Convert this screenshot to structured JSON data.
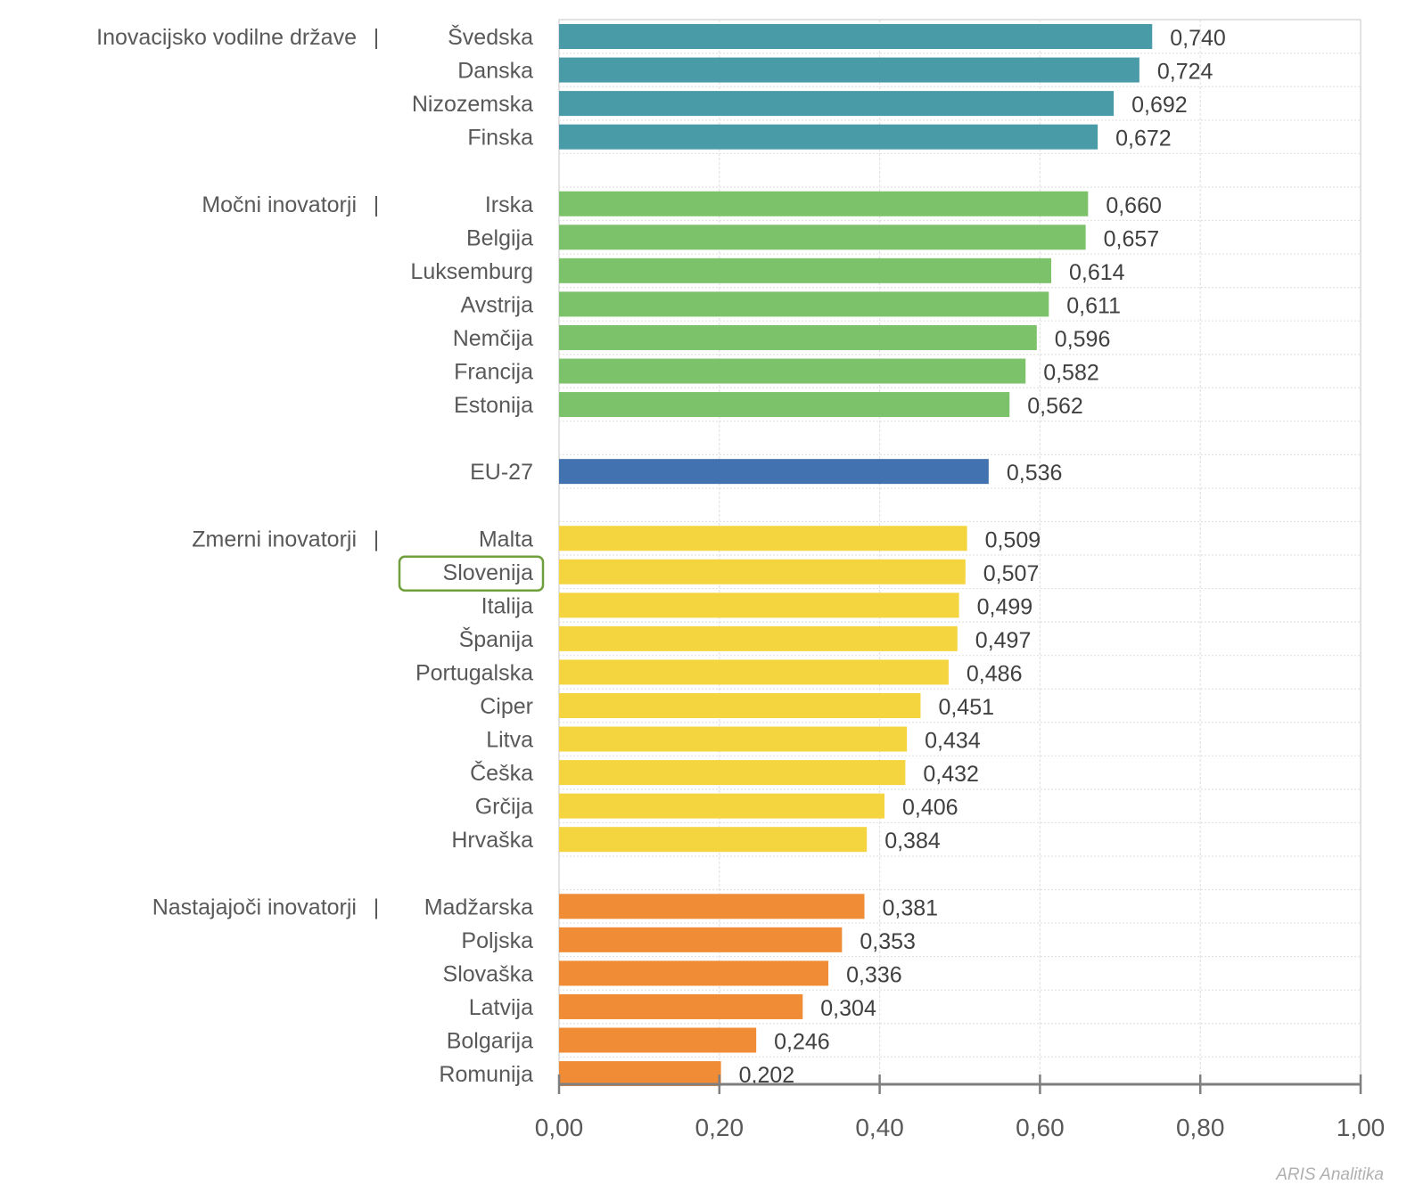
{
  "chart_data": {
    "type": "bar",
    "orientation": "horizontal",
    "title": "",
    "xlabel": "",
    "ylabel": "",
    "xlim": [
      0,
      1
    ],
    "x_ticks": [
      "0,00",
      "0,20",
      "0,40",
      "0,60",
      "0,80",
      "1,00"
    ],
    "x_tick_values": [
      0,
      0.2,
      0.4,
      0.6,
      0.8,
      1.0
    ],
    "grid": true,
    "decimal_separator": ",",
    "highlighted_category": "Slovenija",
    "highlight_color": "#70a03c",
    "groups": [
      {
        "name": "Inovacijsko vodilne države",
        "color": "#4a9ba8",
        "categories": [
          "Švedska",
          "Danska",
          "Nizozemska",
          "Finska"
        ],
        "values": [
          0.74,
          0.724,
          0.692,
          0.672
        ],
        "value_labels": [
          "0,740",
          "0,724",
          "0,692",
          "0,672"
        ]
      },
      {
        "name": "Močni inovatorji",
        "color": "#7cc26a",
        "categories": [
          "Irska",
          "Belgija",
          "Luksemburg",
          "Avstrija",
          "Nemčija",
          "Francija",
          "Estonija"
        ],
        "values": [
          0.66,
          0.657,
          0.614,
          0.611,
          0.596,
          0.582,
          0.562
        ],
        "value_labels": [
          "0,660",
          "0,657",
          "0,614",
          "0,611",
          "0,596",
          "0,582",
          "0,562"
        ]
      },
      {
        "name": "",
        "color": "#4272b0",
        "categories": [
          "EU-27"
        ],
        "values": [
          0.536
        ],
        "value_labels": [
          "0,536"
        ]
      },
      {
        "name": "Zmerni inovatorji",
        "color": "#f4d53f",
        "categories": [
          "Malta",
          "Slovenija",
          "Italija",
          "Španija",
          "Portugalska",
          "Ciper",
          "Litva",
          "Češka",
          "Grčija",
          "Hrvaška"
        ],
        "values": [
          0.509,
          0.507,
          0.499,
          0.497,
          0.486,
          0.451,
          0.434,
          0.432,
          0.406,
          0.384
        ],
        "value_labels": [
          "0,509",
          "0,507",
          "0,499",
          "0,497",
          "0,486",
          "0,451",
          "0,434",
          "0,432",
          "0,406",
          "0,384"
        ]
      },
      {
        "name": "Nastajajoči inovatorji",
        "color": "#f08c35",
        "categories": [
          "Madžarska",
          "Poljska",
          "Slovaška",
          "Latvija",
          "Bolgarija",
          "Romunija"
        ],
        "values": [
          0.381,
          0.353,
          0.336,
          0.304,
          0.246,
          0.202
        ],
        "value_labels": [
          "0,381",
          "0,353",
          "0,336",
          "0,304",
          "0,246",
          "0,202"
        ]
      }
    ],
    "group_separator": "|",
    "watermark": "ARIS Analitika"
  }
}
